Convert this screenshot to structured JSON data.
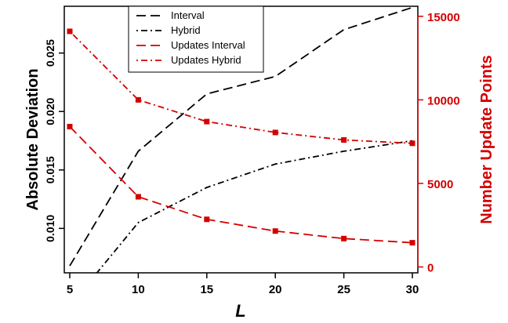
{
  "chart_data": {
    "type": "line",
    "x": [
      5,
      10,
      15,
      20,
      25,
      30
    ],
    "xlabel": "L",
    "xlim": [
      4.6,
      30.4
    ],
    "x_ticks": [
      "5",
      "10",
      "15",
      "20",
      "25",
      "30"
    ],
    "ylabel_left": "Absolute Deviation",
    "ylim_left": [
      0.0062,
      0.029
    ],
    "y_ticks_left": [
      "0.010",
      "0.015",
      "0.020",
      "0.025"
    ],
    "ylabel_right": "Number Update Points",
    "ylim_right": [
      -350,
      15600
    ],
    "y_ticks_right": [
      "0",
      "5000",
      "10000",
      "15000"
    ],
    "legend_position": "top-center",
    "series": [
      {
        "name": "Interval",
        "axis": "left",
        "color": "#000000",
        "dash": "long",
        "x": [
          5,
          10,
          15,
          20,
          25,
          30
        ],
        "values": [
          0.0068,
          0.0166,
          0.0215,
          0.023,
          0.027,
          0.0289
        ]
      },
      {
        "name": "Hybrid",
        "axis": "left",
        "color": "#000000",
        "dash": "dotdash",
        "x": [
          6.7,
          10,
          15,
          20,
          25,
          30
        ],
        "values": [
          0.0058,
          0.0105,
          0.0135,
          0.0155,
          0.0166,
          0.0175
        ]
      },
      {
        "name": "Updates Interval",
        "axis": "right",
        "color": "#d40000",
        "dash": "long",
        "markers": true,
        "x": [
          5,
          10,
          15,
          20,
          25,
          30
        ],
        "values": [
          8400,
          4200,
          2850,
          2150,
          1700,
          1450
        ]
      },
      {
        "name": "Updates Hybrid",
        "axis": "right",
        "color": "#d40000",
        "dash": "dotdash",
        "markers": true,
        "x": [
          5,
          10,
          15,
          20,
          25,
          30
        ],
        "values": [
          14100,
          10000,
          8700,
          8050,
          7600,
          7400
        ]
      }
    ]
  }
}
